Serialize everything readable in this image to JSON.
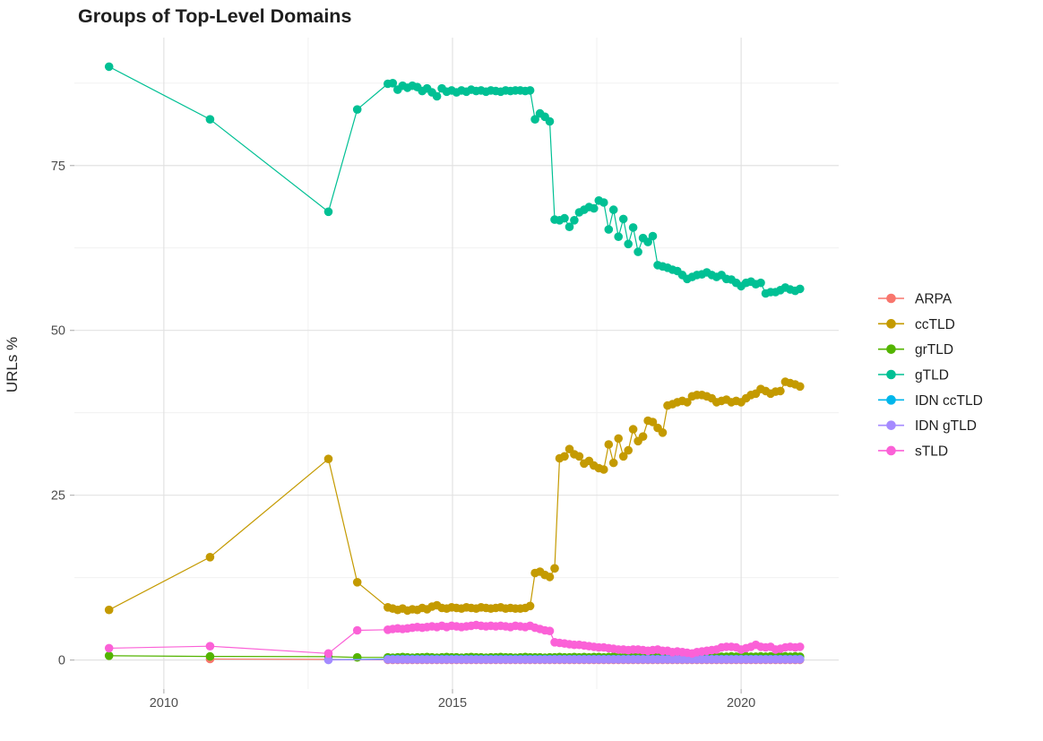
{
  "title": "Groups of Top-Level Domains",
  "chart_data": {
    "type": "line",
    "title": "Groups of Top-Level Domains",
    "xlabel": "",
    "ylabel": "URLs %",
    "grid": true,
    "legend_position": "right",
    "x_ticks": [
      2010,
      2015,
      2020
    ],
    "x_minor_ticks": [
      2012.5,
      2017.5
    ],
    "y_ticks": [
      0,
      25,
      50,
      75
    ],
    "y_minor_ticks": [
      12.5,
      37.5,
      62.5,
      87.5
    ],
    "xlim": [
      2008.45,
      2021.69
    ],
    "ylim": [
      -4.4,
      94.4
    ],
    "colors": {
      "background": "#FFFFFF",
      "grid_major": "#E2E2E2",
      "grid_minor": "#EFEFEF",
      "tick_mark": "#B5B5B5",
      "axis_text": "#4D4D4D",
      "title_text": "#1E1E1E",
      "legend_text": "#1E1E1E"
    },
    "series": [
      {
        "name": "ARPA",
        "color": "#F8766D",
        "early": [
          [
            2010.8,
            0.15
          ],
          [
            2012.85,
            0.1
          ]
        ],
        "dense": {
          "start": 2013.88,
          "step": 0.085,
          "segments": [
            {
              "n": 85,
              "v": 0.03
            }
          ]
        }
      },
      {
        "name": "ccTLD",
        "color": "#C49A00",
        "early": [
          [
            2009.05,
            7.6
          ],
          [
            2010.8,
            15.6
          ],
          [
            2012.85,
            30.5
          ],
          [
            2013.35,
            11.8
          ]
        ],
        "dense": {
          "start": 2013.88,
          "step": 0.085,
          "values": [
            8.0,
            7.8,
            7.6,
            7.8,
            7.5,
            7.7,
            7.6,
            7.9,
            7.7,
            8.1,
            8.3,
            7.9,
            7.8,
            8.0,
            7.9,
            7.8,
            8.0,
            7.9,
            7.8,
            8.0,
            7.9,
            7.8,
            7.9,
            8.0,
            7.8,
            7.9,
            7.8,
            7.8,
            7.9,
            8.2,
            13.2,
            13.4,
            12.9,
            12.6,
            13.9,
            30.6,
            30.9,
            32.0,
            31.2,
            30.9,
            29.8,
            30.2,
            29.5,
            29.1,
            28.9,
            32.7,
            29.9,
            33.6,
            30.9,
            31.8,
            35.0,
            33.2,
            33.9,
            36.3,
            36.1,
            35.2,
            34.5,
            38.6,
            38.8,
            39.1,
            39.3,
            39.1,
            40.0,
            40.2,
            40.2,
            40.0,
            39.7,
            39.1,
            39.3,
            39.5,
            39.1,
            39.3,
            39.1,
            39.7,
            40.2,
            40.4,
            41.1,
            40.8,
            40.4,
            40.7,
            40.8,
            42.2,
            42.0,
            41.8,
            41.5
          ]
        }
      },
      {
        "name": "grTLD",
        "color": "#53B400",
        "early": [
          [
            2009.05,
            0.65
          ],
          [
            2010.8,
            0.55
          ],
          [
            2012.85,
            0.5
          ],
          [
            2013.35,
            0.4
          ]
        ],
        "dense": {
          "start": 2013.88,
          "step": 0.085,
          "values": [
            0.4,
            0.35,
            0.4,
            0.45,
            0.4,
            0.35,
            0.4,
            0.4,
            0.45,
            0.4,
            0.35,
            0.4,
            0.45,
            0.4,
            0.4,
            0.35,
            0.4,
            0.45,
            0.4,
            0.4,
            0.35,
            0.4,
            0.4,
            0.45,
            0.4,
            0.4,
            0.35,
            0.4,
            0.45,
            0.4,
            0.4,
            0.4,
            0.35,
            0.4,
            0.4,
            0.45,
            0.4,
            0.4,
            0.45,
            0.4,
            0.45,
            0.4,
            0.45,
            0.45,
            0.4,
            0.45,
            0.5,
            0.45,
            0.4,
            0.45,
            0.5,
            0.45,
            0.45,
            0.5,
            0.45,
            0.5,
            0.45,
            0.5,
            0.5,
            0.45,
            0.5,
            0.5,
            0.45,
            0.5,
            0.5,
            0.45,
            0.5,
            0.45,
            0.5,
            0.5,
            0.55,
            0.5,
            0.5,
            0.55,
            0.5,
            0.5,
            0.55,
            0.5,
            0.55,
            0.5,
            0.55,
            0.55,
            0.5,
            0.55,
            0.5
          ]
        }
      },
      {
        "name": "gTLD",
        "color": "#00C094",
        "early": [
          [
            2009.05,
            90.0
          ],
          [
            2010.8,
            82.0
          ],
          [
            2012.85,
            68.0
          ],
          [
            2013.35,
            83.5
          ]
        ],
        "dense": {
          "start": 2013.88,
          "step": 0.085,
          "values": [
            87.4,
            87.5,
            86.5,
            87.1,
            86.8,
            87.1,
            86.9,
            86.3,
            86.7,
            86.1,
            85.5,
            86.7,
            86.2,
            86.4,
            86.1,
            86.4,
            86.2,
            86.5,
            86.3,
            86.4,
            86.2,
            86.4,
            86.3,
            86.2,
            86.4,
            86.3,
            86.4,
            86.4,
            86.3,
            86.4,
            82.0,
            82.9,
            82.4,
            81.7,
            66.8,
            66.7,
            67.0,
            65.7,
            66.7,
            67.9,
            68.3,
            68.7,
            68.5,
            69.7,
            69.4,
            65.3,
            68.3,
            64.2,
            66.9,
            63.1,
            65.6,
            61.9,
            64.0,
            63.4,
            64.3,
            59.9,
            59.7,
            59.5,
            59.2,
            59.0,
            58.4,
            57.8,
            58.1,
            58.4,
            58.5,
            58.8,
            58.4,
            58.1,
            58.4,
            57.8,
            57.7,
            57.2,
            56.7,
            57.2,
            57.4,
            57.0,
            57.2,
            55.6,
            55.8,
            55.8,
            56.1,
            56.5,
            56.2,
            56.0,
            56.3
          ]
        }
      },
      {
        "name": "IDN ccTLD",
        "color": "#00B6EB",
        "early": [
          [
            2012.85,
            0.05
          ]
        ],
        "dense": {
          "start": 2013.88,
          "step": 0.085,
          "segments": [
            {
              "n": 85,
              "v": 0.15
            }
          ]
        }
      },
      {
        "name": "IDN gTLD",
        "color": "#A58AFF",
        "early": [
          [
            2012.85,
            0.02
          ]
        ],
        "dense": {
          "start": 2013.88,
          "step": 0.085,
          "segments": [
            {
              "n": 34,
              "v": 0.08
            },
            {
              "n": 51,
              "v": 0.1
            }
          ]
        }
      },
      {
        "name": "sTLD",
        "color": "#FB61D7",
        "early": [
          [
            2009.05,
            1.8
          ],
          [
            2010.8,
            2.1
          ],
          [
            2012.85,
            1.0
          ],
          [
            2013.35,
            4.5
          ]
        ],
        "dense": {
          "start": 2013.88,
          "step": 0.085,
          "values": [
            4.6,
            4.7,
            4.8,
            4.7,
            4.8,
            4.9,
            5.0,
            4.9,
            5.0,
            5.1,
            5.0,
            5.2,
            5.0,
            5.2,
            5.1,
            5.0,
            5.1,
            5.2,
            5.3,
            5.2,
            5.1,
            5.2,
            5.1,
            5.2,
            5.1,
            5.0,
            5.2,
            5.1,
            5.0,
            5.2,
            4.9,
            4.7,
            4.5,
            4.4,
            2.7,
            2.6,
            2.5,
            2.4,
            2.3,
            2.3,
            2.2,
            2.1,
            2.0,
            1.9,
            1.9,
            1.8,
            1.7,
            1.6,
            1.6,
            1.5,
            1.6,
            1.6,
            1.5,
            1.4,
            1.5,
            1.6,
            1.4,
            1.4,
            1.2,
            1.3,
            1.2,
            1.1,
            1.0,
            1.2,
            1.3,
            1.4,
            1.5,
            1.6,
            1.9,
            2.0,
            2.0,
            1.9,
            1.6,
            1.8,
            2.0,
            2.3,
            2.0,
            1.9,
            2.0,
            1.6,
            1.7,
            1.9,
            2.0,
            1.9,
            2.0
          ]
        }
      }
    ]
  }
}
